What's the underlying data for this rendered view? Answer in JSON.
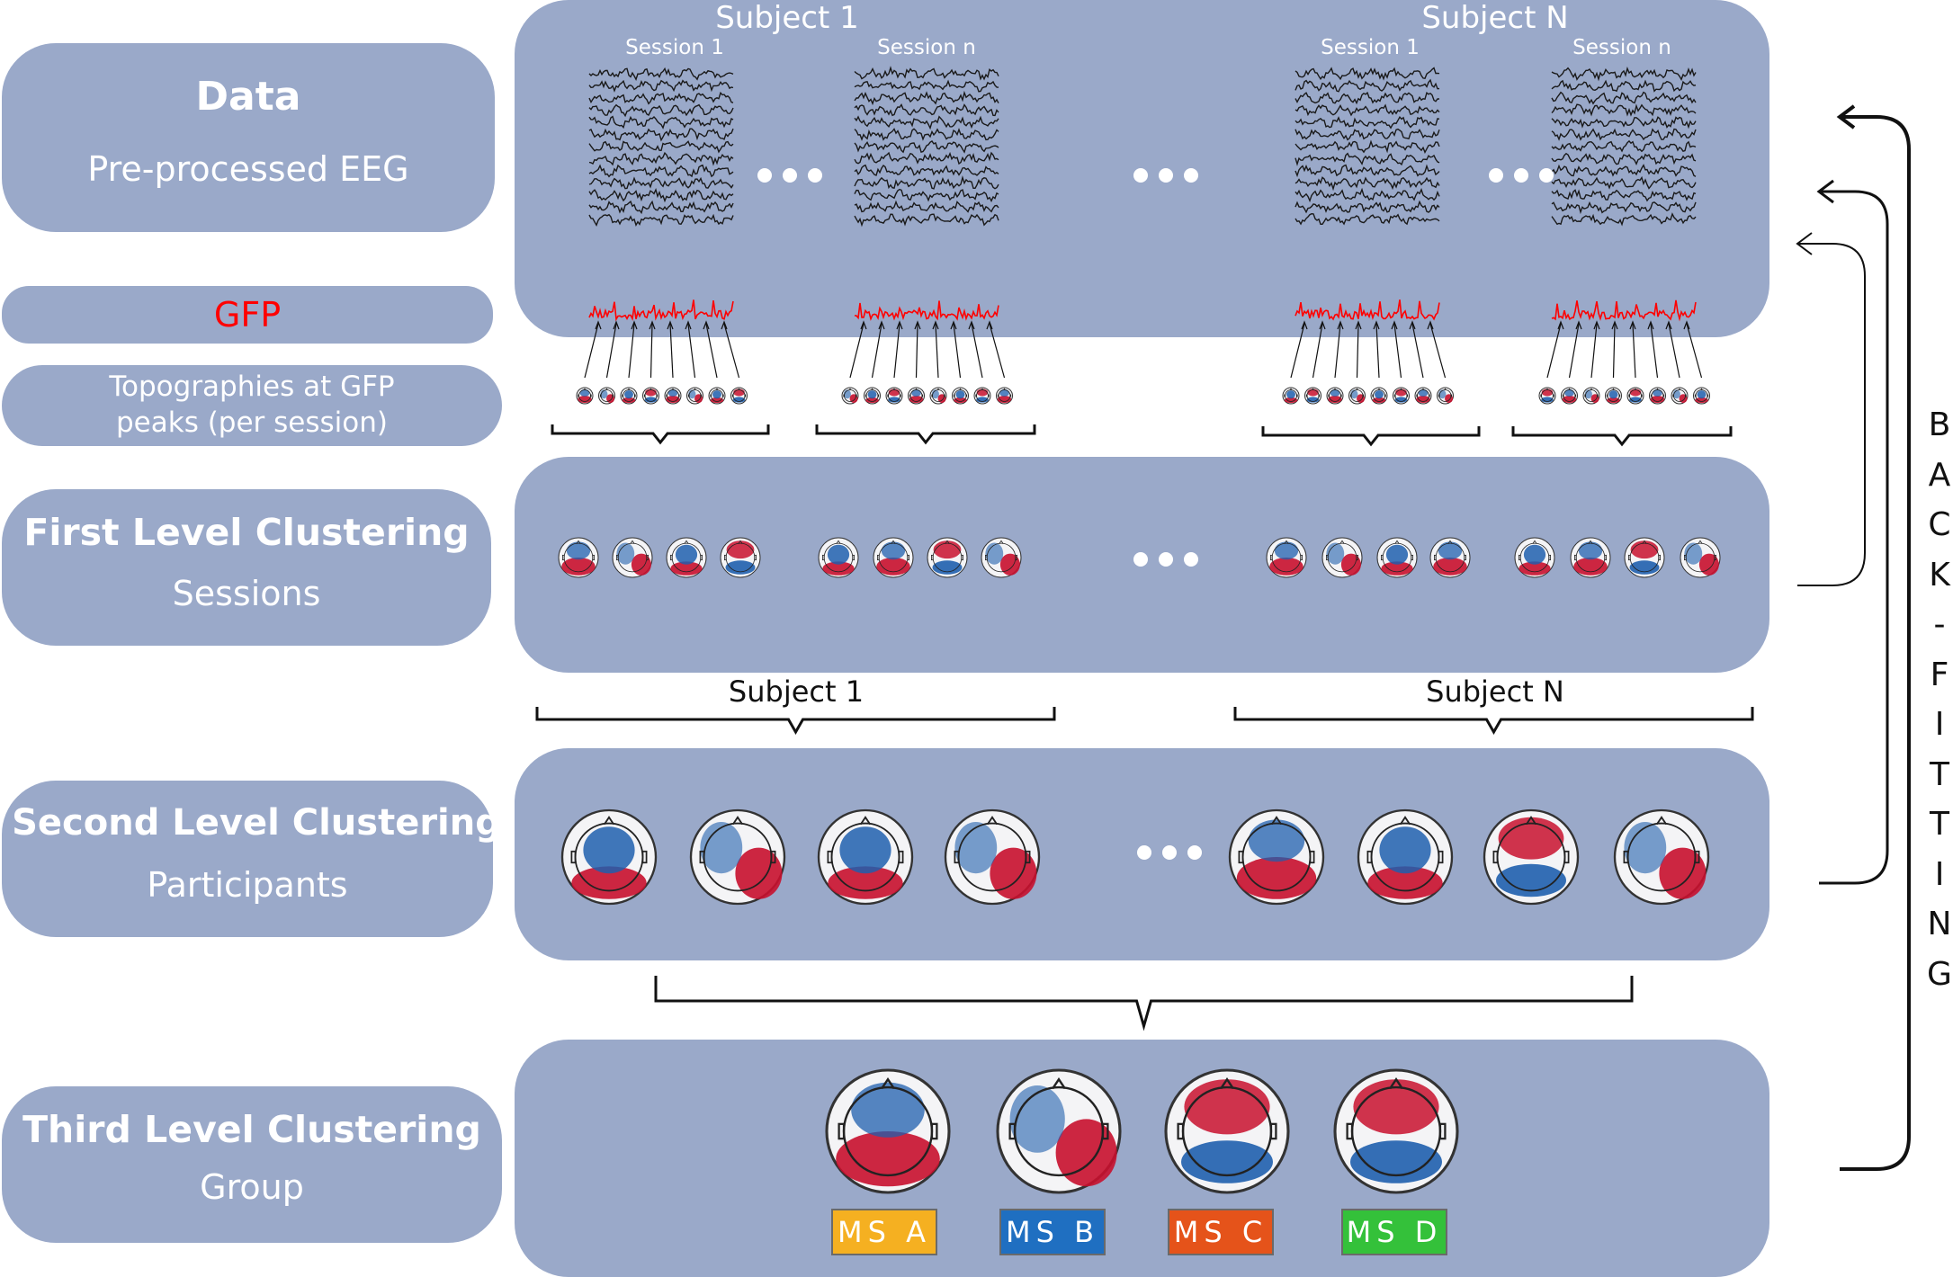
{
  "left_labels": {
    "data": {
      "title": "Data",
      "subtitle": "Pre-processed EEG"
    },
    "gfp": {
      "title": "GFP"
    },
    "topographies": {
      "line1": "Topographies at GFP",
      "line2": "peaks (per session)"
    },
    "first_level": {
      "title": "First Level Clustering",
      "subtitle": "Sessions"
    },
    "second_level": {
      "title": "Second Level Clustering",
      "subtitle": "Participants"
    },
    "third_level": {
      "title": "Third Level Clustering",
      "subtitle": "Group"
    }
  },
  "data_panel": {
    "subject_1": "Subject 1",
    "subject_n": "Subject N",
    "sessions": [
      "Session 1",
      "Session n",
      "Session 1",
      "Session n"
    ]
  },
  "subject_brackets": {
    "subject_1": "Subject 1",
    "subject_n": "Subject N"
  },
  "microstates": [
    {
      "label": "MS A",
      "color": "#f5b021"
    },
    {
      "label": "MS B",
      "color": "#1f6fc1"
    },
    {
      "label": "MS C",
      "color": "#e5531a"
    },
    {
      "label": "MS D",
      "color": "#34c13a"
    }
  ],
  "backfitting": [
    "B",
    "A",
    "C",
    "K",
    "-",
    "F",
    "I",
    "T",
    "T",
    "I",
    "N",
    "G"
  ],
  "colors": {
    "panel": "#9aa9c9",
    "gfp_red": "#ff0000",
    "topo_red": "#c8102e",
    "topo_blue": "#1f5fae"
  }
}
